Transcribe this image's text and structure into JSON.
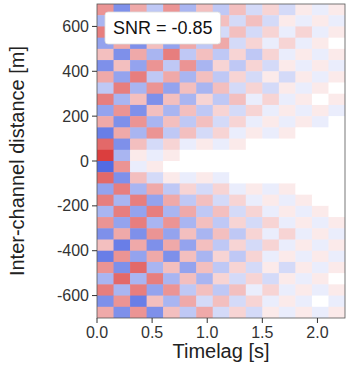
{
  "chart_data": {
    "type": "heatmap",
    "xlabel": "Timelag [s]",
    "ylabel": "Inter-channel distance [m]",
    "annotation": "SNR = -0.85",
    "xlim": [
      0,
      2.25
    ],
    "ylim": [
      -700,
      700
    ],
    "xticks": [
      {
        "value": 0,
        "label": "0.0"
      },
      {
        "value": 0.5,
        "label": "0.5"
      },
      {
        "value": 1,
        "label": "1.0"
      },
      {
        "value": 1.5,
        "label": "1.5"
      },
      {
        "value": 2,
        "label": "2.0"
      }
    ],
    "yticks": [
      600,
      400,
      200,
      0,
      -200,
      -400,
      -600
    ],
    "color_range": [
      -1,
      1
    ],
    "cells": [
      [
        0.5,
        -0.6,
        0.4,
        -0.3,
        0.5,
        -0.4,
        0.3,
        -0.3,
        0.3,
        -0.2,
        0.2,
        -0.2,
        0.1,
        -0.1,
        0.1
      ],
      [
        -0.4,
        0.6,
        -0.5,
        0.4,
        -0.4,
        0.5,
        -0.3,
        0.3,
        -0.2,
        0.3,
        -0.2,
        0.1,
        -0.1,
        0.1,
        -0.1
      ],
      [
        0.6,
        -0.3,
        0.5,
        -0.6,
        0.3,
        -0.3,
        0.4,
        -0.2,
        0.3,
        -0.2,
        0.2,
        -0.1,
        0.2,
        -0.1,
        0.1
      ],
      [
        -0.5,
        0.4,
        -0.6,
        0.3,
        -0.5,
        0.4,
        -0.3,
        0.4,
        -0.2,
        0.2,
        -0.1,
        0.2,
        -0.1,
        0.1,
        0
      ],
      [
        0.3,
        -0.6,
        0.4,
        -0.4,
        0.6,
        -0.3,
        0.3,
        -0.3,
        0.2,
        -0.3,
        0.2,
        -0.1,
        0.1,
        -0.1,
        0.1
      ],
      [
        -0.6,
        0.3,
        -0.5,
        0.5,
        -0.3,
        0.5,
        -0.4,
        0.2,
        -0.3,
        0.2,
        -0.2,
        0.1,
        -0.1,
        0.1,
        -0.1
      ],
      [
        0.4,
        -0.5,
        0.6,
        -0.3,
        0.4,
        -0.4,
        0.3,
        -0.3,
        0.2,
        -0.2,
        0.1,
        -0.2,
        0.1,
        -0.1,
        0.1
      ],
      [
        -0.3,
        0.6,
        -0.4,
        0.5,
        -0.5,
        0.3,
        -0.4,
        0.3,
        -0.2,
        0.2,
        -0.2,
        0.1,
        -0.1,
        0.1,
        0
      ],
      [
        0.6,
        -0.4,
        0.3,
        -0.6,
        0.3,
        -0.4,
        0.2,
        -0.3,
        0.3,
        -0.1,
        0.2,
        -0.1,
        0.1,
        0,
        0.1
      ],
      [
        -0.5,
        0.5,
        -0.6,
        0.3,
        -0.4,
        0.3,
        -0.3,
        0.2,
        -0.2,
        0.2,
        -0.1,
        0.1,
        -0.1,
        0.1,
        -0.1
      ],
      [
        0.4,
        -0.6,
        0.5,
        -0.4,
        0.3,
        -0.3,
        0.3,
        -0.2,
        0.2,
        -0.1,
        0.1,
        -0.1,
        0.1,
        -0.1,
        0
      ],
      [
        -0.7,
        0.4,
        -0.4,
        0.5,
        -0.3,
        0.3,
        -0.2,
        0.2,
        -0.1,
        0.1,
        -0.1,
        0.1,
        0,
        0,
        0
      ],
      [
        0.7,
        -0.6,
        0.3,
        -0.2,
        0.2,
        -0.1,
        0.1,
        -0.1,
        0.1,
        0,
        0,
        0,
        0,
        0,
        0
      ],
      [
        0.9,
        -0.4,
        0.1,
        -0.1,
        0.1,
        0,
        0,
        0,
        0,
        0,
        0,
        0,
        0,
        0,
        0
      ],
      [
        -0.8,
        0.5,
        -0.1,
        0.1,
        0,
        0,
        0,
        0,
        0,
        0,
        0,
        0,
        0,
        0,
        0
      ],
      [
        0.7,
        -0.6,
        0.3,
        -0.2,
        0.1,
        -0.1,
        0.1,
        -0.1,
        0,
        0,
        0,
        0,
        0,
        0,
        0
      ],
      [
        -0.5,
        0.6,
        -0.4,
        0.4,
        -0.3,
        0.2,
        -0.2,
        0.2,
        -0.1,
        0.1,
        -0.1,
        0.1,
        0,
        0,
        0
      ],
      [
        0.6,
        -0.4,
        0.6,
        -0.5,
        0.4,
        -0.3,
        0.3,
        -0.2,
        0.2,
        -0.1,
        0.1,
        -0.1,
        0.1,
        0,
        0
      ],
      [
        -0.4,
        0.6,
        -0.5,
        0.6,
        -0.4,
        0.4,
        -0.3,
        0.3,
        -0.2,
        0.2,
        -0.1,
        0.1,
        -0.1,
        0.1,
        0
      ],
      [
        0.5,
        -0.5,
        0.6,
        -0.4,
        0.5,
        -0.4,
        0.3,
        -0.3,
        0.2,
        -0.2,
        0.2,
        -0.1,
        0.1,
        -0.1,
        0.1
      ],
      [
        -0.6,
        0.4,
        -0.6,
        0.5,
        -0.5,
        0.3,
        -0.4,
        0.3,
        -0.3,
        0.2,
        -0.1,
        0.2,
        -0.1,
        0.1,
        -0.1
      ],
      [
        0.3,
        -0.7,
        0.4,
        -0.6,
        0.4,
        -0.5,
        0.3,
        -0.3,
        0.2,
        -0.2,
        0.2,
        -0.1,
        0.1,
        -0.1,
        0.1
      ],
      [
        -0.7,
        0.5,
        -0.5,
        0.4,
        -0.6,
        0.3,
        -0.4,
        0.2,
        -0.3,
        0.2,
        -0.1,
        0.1,
        -0.1,
        0.1,
        -0.1
      ],
      [
        0.5,
        -0.6,
        0.7,
        -0.4,
        0.3,
        -0.5,
        0.3,
        -0.3,
        0.2,
        -0.2,
        0.1,
        -0.2,
        0.1,
        -0.1,
        0.1
      ],
      [
        -0.4,
        0.7,
        -0.4,
        0.6,
        -0.4,
        0.3,
        -0.4,
        0.2,
        -0.2,
        0.2,
        -0.2,
        0.1,
        -0.1,
        0.1,
        0
      ],
      [
        0.6,
        -0.4,
        0.6,
        -0.5,
        0.5,
        -0.3,
        0.3,
        -0.3,
        0.3,
        -0.1,
        0.2,
        -0.1,
        0.1,
        -0.1,
        0.1
      ],
      [
        -0.6,
        0.5,
        -0.7,
        0.3,
        -0.4,
        0.4,
        -0.2,
        0.3,
        -0.2,
        0.2,
        -0.1,
        0.1,
        -0.1,
        0,
        -0.1
      ],
      [
        0.4,
        -0.6,
        0.5,
        -0.6,
        0.3,
        -0.3,
        0.4,
        -0.2,
        0.2,
        -0.2,
        0.1,
        -0.1,
        0.1,
        -0.1,
        0.1
      ]
    ]
  }
}
